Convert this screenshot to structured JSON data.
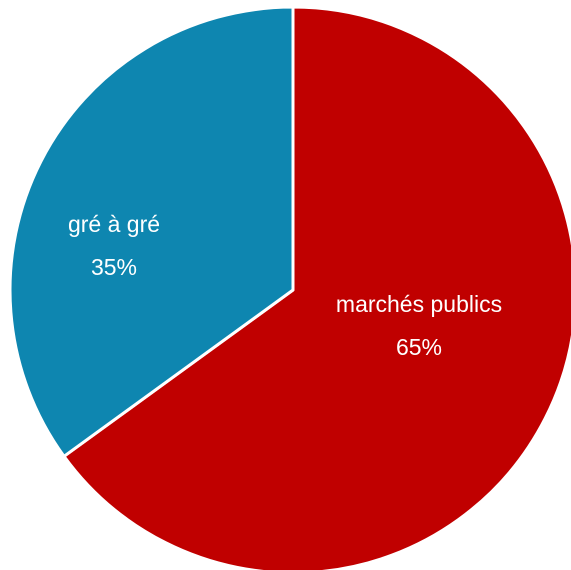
{
  "chart_data": {
    "type": "pie",
    "start_angle_deg": 0,
    "direction": "clockwise",
    "slices": [
      {
        "label": "marchés publics",
        "value": 65,
        "display": "65%",
        "color": "#c00000"
      },
      {
        "label": "gré à gré",
        "value": 35,
        "display": "35%",
        "color": "#0e86b0"
      }
    ],
    "legend": "none"
  }
}
